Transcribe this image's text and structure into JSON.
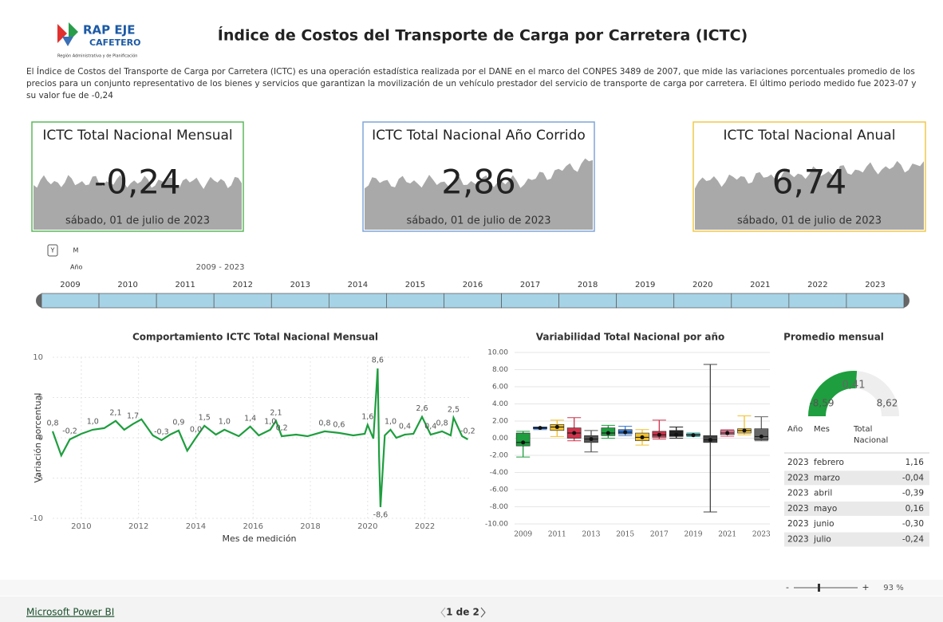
{
  "header": {
    "title": "Índice de Costos del Transporte de Carga por Carretera (ICTC)",
    "description": "El Índice de Costos del Transporte de Carga por Carretera (ICTC) es una operación estadística realizada por el DANE en el marco del CONPES 3489 de 2007, que mide las variaciones porcentuales promedio de los precios para un conjunto representativo de los bienes y servicios que garantizan la movilización de un vehículo prestador del servicio de transporte de carga por carretera. El último periodo medido fue 2023-07 y su valor fue de -0,24",
    "logo": [
      "RAP EJE",
      "CAFETERO",
      "Región Administrativa y de Planificación"
    ]
  },
  "cards": [
    {
      "title": "ICTC Total Nacional Mensual",
      "value": "-0,24",
      "date": "sábado, 01 de julio de 2023",
      "color": "#5cb85c"
    },
    {
      "title": "ICTC Total Nacional Año Corrido",
      "value": "2,86",
      "date": "sábado, 01 de julio de 2023",
      "color": "#7ea6d8"
    },
    {
      "title": "ICTC Total Nacional Anual",
      "value": "6,74",
      "date": "sábado, 01 de julio de 2023",
      "color": "#f0c94a"
    }
  ],
  "slicer": {
    "mode_labels": [
      "Y",
      "M"
    ],
    "label": "Año",
    "range": "2009 - 2023",
    "years": [
      2009,
      2010,
      2011,
      2012,
      2013,
      2014,
      2015,
      2016,
      2017,
      2018,
      2019,
      2020,
      2021,
      2022,
      2023
    ]
  },
  "line_chart": {
    "type": "line",
    "title": "Comportamiento ICTC Total Nacional Mensual",
    "x_label": "Mes de medición",
    "y_label": "Variación porcentual",
    "color": "#1e9e3e",
    "x": [
      2009.0,
      2009.3,
      2009.6,
      2010.0,
      2010.4,
      2010.8,
      2011.2,
      2011.5,
      2011.8,
      2012.1,
      2012.5,
      2012.8,
      2013.1,
      2013.4,
      2013.7,
      2014.0,
      2014.3,
      2014.7,
      2015.0,
      2015.5,
      2015.9,
      2016.2,
      2016.6,
      2016.8,
      2017.0,
      2017.5,
      2017.9,
      2018.5,
      2019.0,
      2019.5,
      2019.9,
      2020.0,
      2020.2,
      2020.35,
      2020.4,
      2020.45,
      2020.6,
      2020.8,
      2021.0,
      2021.3,
      2021.6,
      2021.9,
      2022.2,
      2022.6,
      2022.9,
      2023.0,
      2023.3,
      2023.5
    ],
    "values": [
      0.8,
      -2.2,
      -0.2,
      0.5,
      1.0,
      1.2,
      2.1,
      1.0,
      1.7,
      2.3,
      0.3,
      -0.3,
      0.4,
      0.9,
      -1.6,
      0.0,
      1.5,
      0.4,
      1.0,
      0.2,
      1.4,
      0.3,
      1.0,
      2.1,
      0.2,
      0.4,
      0.2,
      0.8,
      0.6,
      0.3,
      0.5,
      1.6,
      -0.1,
      8.6,
      -2.4,
      -8.6,
      0.3,
      1.0,
      0.0,
      0.4,
      0.5,
      2.6,
      0.4,
      0.8,
      0.3,
      2.5,
      0.2,
      -0.2
    ],
    "value_labels": [
      "0,8",
      null,
      "-0,2",
      null,
      "1,0",
      null,
      "2,1",
      null,
      "1,7",
      null,
      null,
      "-0,3",
      null,
      "0,9",
      null,
      "0,0",
      "1,5",
      null,
      "1,0",
      null,
      "1,4",
      null,
      "1,0",
      "2,1",
      "0,2",
      null,
      null,
      "0,8",
      "0,6",
      null,
      null,
      "1,6",
      null,
      "8,6",
      null,
      "-8,6",
      null,
      "1,0",
      null,
      "0,4",
      null,
      "2,6",
      "0,4",
      "0,8",
      null,
      "2,5",
      null,
      "-0,2"
    ],
    "xlim": [
      2009,
      2023.6
    ],
    "xticks": [
      2010,
      2012,
      2014,
      2016,
      2018,
      2020,
      2022
    ],
    "ylim": [
      -10,
      10
    ],
    "yticks": [
      -10,
      -5,
      0,
      5,
      10
    ],
    "grid": true
  },
  "box_chart": {
    "type": "box",
    "title": "Variabilidad Total Nacional por año",
    "categories": [
      "2009",
      null,
      "2011",
      null,
      "2013",
      null,
      "2015",
      null,
      "2017",
      null,
      "2019",
      null,
      "2021",
      null,
      "2023"
    ],
    "colors": [
      "#1e9e3e",
      "#3b7dd8",
      "#f2c12e",
      "#d0344c",
      "#555555",
      "#1e9e3e",
      "#3b7dd8",
      "#f2c12e",
      "#d0344c",
      "#222222",
      "#2aa6a0",
      "#444444",
      "#e8738f",
      "#f2c12e",
      "#666666"
    ],
    "min": [
      -2.2,
      1.0,
      0.2,
      -0.3,
      -1.6,
      0.0,
      0.3,
      -0.8,
      -0.1,
      0.0,
      0.2,
      -8.6,
      0.2,
      0.4,
      -0.3
    ],
    "q1": [
      -0.9,
      1.1,
      0.9,
      0.0,
      -0.5,
      0.3,
      0.5,
      -0.3,
      0.1,
      0.2,
      0.3,
      -0.5,
      0.4,
      0.6,
      -0.2
    ],
    "median": [
      -0.5,
      1.2,
      1.3,
      0.6,
      -0.1,
      0.6,
      0.7,
      0.1,
      0.4,
      0.4,
      0.35,
      -0.2,
      0.6,
      0.9,
      0.2
    ],
    "q3": [
      0.6,
      1.3,
      1.6,
      1.2,
      0.3,
      1.2,
      1.0,
      0.6,
      0.8,
      0.9,
      0.5,
      0.3,
      0.9,
      1.1,
      1.1
    ],
    "max": [
      0.8,
      1.3,
      2.1,
      2.4,
      0.9,
      1.5,
      1.4,
      1.0,
      2.1,
      1.3,
      0.6,
      8.6,
      1.0,
      2.6,
      2.5
    ],
    "ylim": [
      -10,
      10
    ],
    "yticks": [
      {
        "value": -10,
        "label": "-10.00"
      },
      {
        "value": -8,
        "label": "-8.00"
      },
      {
        "value": -6,
        "label": "-6.00"
      },
      {
        "value": -4,
        "label": "-4.00"
      },
      {
        "value": -2,
        "label": "-2.00"
      },
      {
        "value": 0,
        "label": "0.00"
      },
      {
        "value": 2,
        "label": "2.00"
      },
      {
        "value": 4,
        "label": "4.00"
      },
      {
        "value": 6,
        "label": "6.00"
      },
      {
        "value": 8,
        "label": "8.00"
      },
      {
        "value": 10,
        "label": "10.00"
      }
    ],
    "grid": true
  },
  "gauge": {
    "type": "gauge",
    "title": "Promedio mensual",
    "value": 0.41,
    "value_label": "0,41",
    "min": -8.59,
    "min_label": "-8,59",
    "max": 8.62,
    "max_label": "8,62",
    "color": "#1e9e3e"
  },
  "table": {
    "columns": [
      "Año",
      "Mes",
      "Total Nacional"
    ],
    "rows": [
      [
        "2023",
        "febrero",
        "1,16"
      ],
      [
        "2023",
        "marzo",
        "-0,04"
      ],
      [
        "2023",
        "abril",
        "-0,39"
      ],
      [
        "2023",
        "mayo",
        "0,16"
      ],
      [
        "2023",
        "junio",
        "-0,30"
      ],
      [
        "2023",
        "julio",
        "-0,24"
      ]
    ]
  },
  "footer": {
    "brand": "Microsoft Power BI",
    "page": "1 de 2",
    "zoom": "93 %",
    "zoom_out": "-",
    "zoom_in": "+"
  }
}
